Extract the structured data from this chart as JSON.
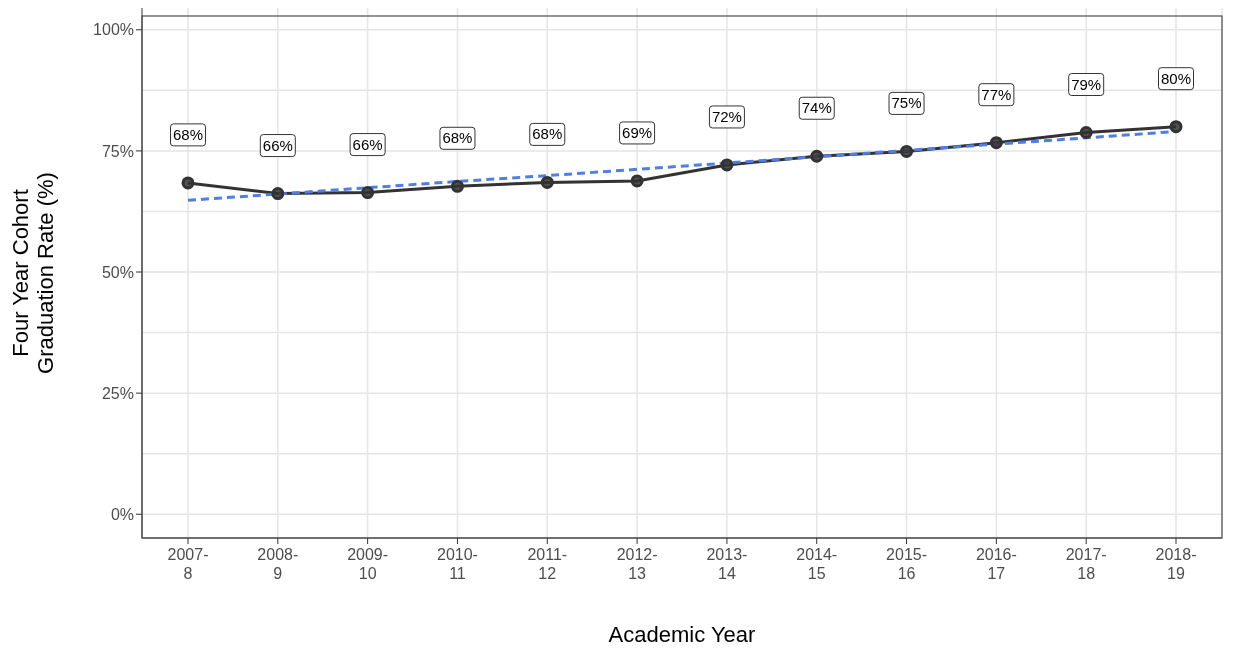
{
  "chart_data": {
    "type": "line",
    "xlabel": "Academic Year",
    "ylabel": "Four Year Cohort\nGraduation Rate (%)",
    "categories": [
      "2007-\n8",
      "2008-\n9",
      "2009-\n10",
      "2010-\n11",
      "2011-\n12",
      "2012-\n13",
      "2013-\n14",
      "2014-\n15",
      "2015-\n16",
      "2016-\n17",
      "2017-\n18",
      "2018-\n19"
    ],
    "series": [
      {
        "color": "#333333",
        "marker": "circle",
        "line_style": "solid",
        "values": [
          68.4,
          66.2,
          66.4,
          67.7,
          68.5,
          68.8,
          72.1,
          73.9,
          74.9,
          76.7,
          78.8,
          80.0
        ],
        "value_labels": [
          "68%",
          "66%",
          "66%",
          "68%",
          "68%",
          "69%",
          "72%",
          "74%",
          "75%",
          "77%",
          "79%",
          "80%"
        ]
      },
      {
        "color": "#4f7fe3",
        "marker": "none",
        "line_style": "dashed",
        "values": [
          64.8,
          66.1,
          67.4,
          68.7,
          69.9,
          71.2,
          72.5,
          73.8,
          75.1,
          76.4,
          77.7,
          79.0
        ]
      }
    ],
    "ylim": [
      -4.9,
      104.5
    ],
    "yticks": [
      {
        "value": 0,
        "label": "0%"
      },
      {
        "value": 25,
        "label": "25%"
      },
      {
        "value": 50,
        "label": "50%"
      },
      {
        "value": 75,
        "label": "75%"
      },
      {
        "value": 100,
        "label": "100%"
      }
    ],
    "grid": true
  }
}
